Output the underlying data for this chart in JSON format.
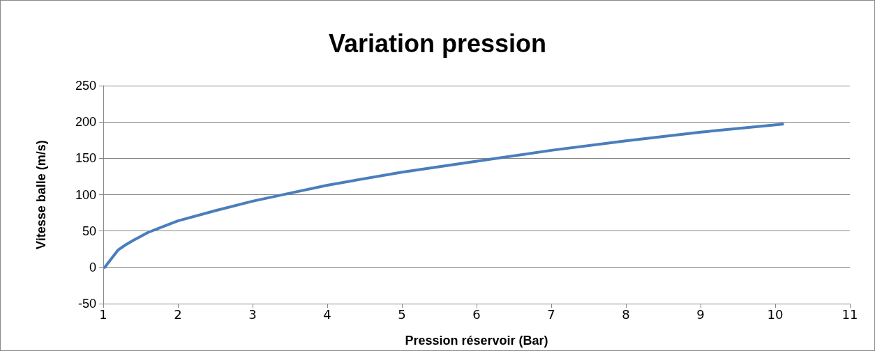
{
  "chart_data": {
    "type": "line",
    "title": "Variation pression",
    "xlabel": "Pression réservoir (Bar)",
    "ylabel": "Vitesse balle (m/s)",
    "x": [
      1.02,
      1.2,
      1.3,
      1.4,
      1.6,
      1.8,
      2,
      2.5,
      3,
      3.5,
      4,
      5,
      6,
      7,
      8,
      9,
      10.1
    ],
    "series": [
      {
        "color": "#4a7ebb",
        "values": [
          0,
          24,
          31,
          37,
          48,
          56,
          64,
          78,
          91,
          102,
          113,
          131,
          146,
          161,
          174,
          186,
          197
        ]
      }
    ],
    "xlim": [
      1,
      11
    ],
    "xticks": [
      1,
      2,
      3,
      4,
      5,
      6,
      7,
      8,
      9,
      10,
      11
    ],
    "ylim": [
      -50,
      250
    ],
    "yticks": [
      -50,
      0,
      50,
      100,
      150,
      200,
      250
    ],
    "grid": "y",
    "marker": "none",
    "line_style": "solid"
  }
}
